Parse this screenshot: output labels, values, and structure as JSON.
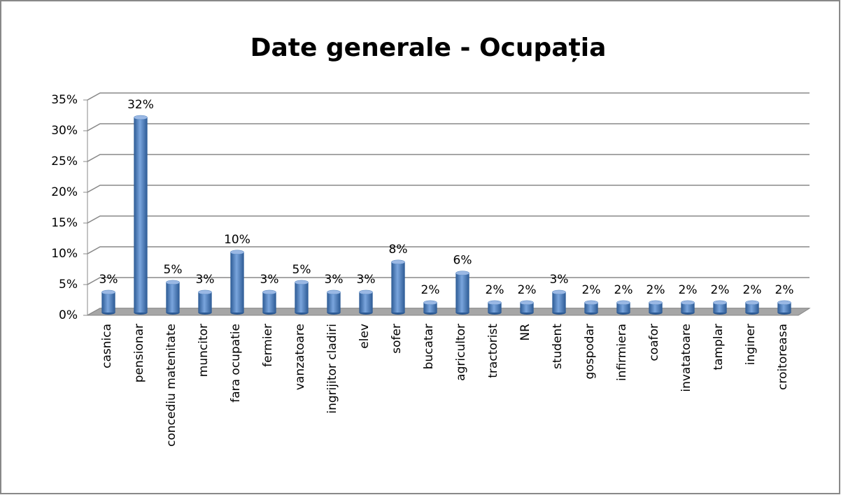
{
  "chart_data": {
    "type": "bar",
    "title": "Date generale - Ocupația",
    "categories": [
      "casnica",
      "pensionar",
      "concediu matenitate",
      "muncitor",
      "fara ocupatie",
      "fermier",
      "vanzatoare",
      "ingrijitor cladiri",
      "elev",
      "sofer",
      "bucatar",
      "agricultor",
      "tractorist",
      "NR",
      "student",
      "gospodar",
      "infirmiera",
      "coafor",
      "invatatoare",
      "tamplar",
      "inginer",
      "croitoreasa"
    ],
    "values": [
      3.3,
      31.7,
      4.9,
      3.3,
      9.8,
      3.3,
      4.9,
      3.3,
      3.3,
      8.2,
      1.6,
      6.4,
      1.6,
      1.6,
      3.3,
      1.6,
      1.6,
      1.6,
      1.6,
      1.6,
      1.6,
      1.6
    ],
    "value_labels": [
      "3%",
      "32%",
      "5%",
      "3%",
      "10%",
      "3%",
      "5%",
      "3%",
      "3%",
      "8%",
      "2%",
      "6%",
      "2%",
      "2%",
      "3%",
      "2%",
      "2%",
      "2%",
      "2%",
      "2%",
      "2%",
      "2%"
    ],
    "color": "#4a7ebb",
    "ylim": [
      0,
      35
    ],
    "yticks": [
      {
        "value": 0,
        "label": "0%"
      },
      {
        "value": 5,
        "label": "5%"
      },
      {
        "value": 10,
        "label": "10%"
      },
      {
        "value": 15,
        "label": "15%"
      },
      {
        "value": 20,
        "label": "20%"
      },
      {
        "value": 25,
        "label": "25%"
      },
      {
        "value": 30,
        "label": "30%"
      },
      {
        "value": 35,
        "label": "35%"
      }
    ],
    "grid": true
  }
}
